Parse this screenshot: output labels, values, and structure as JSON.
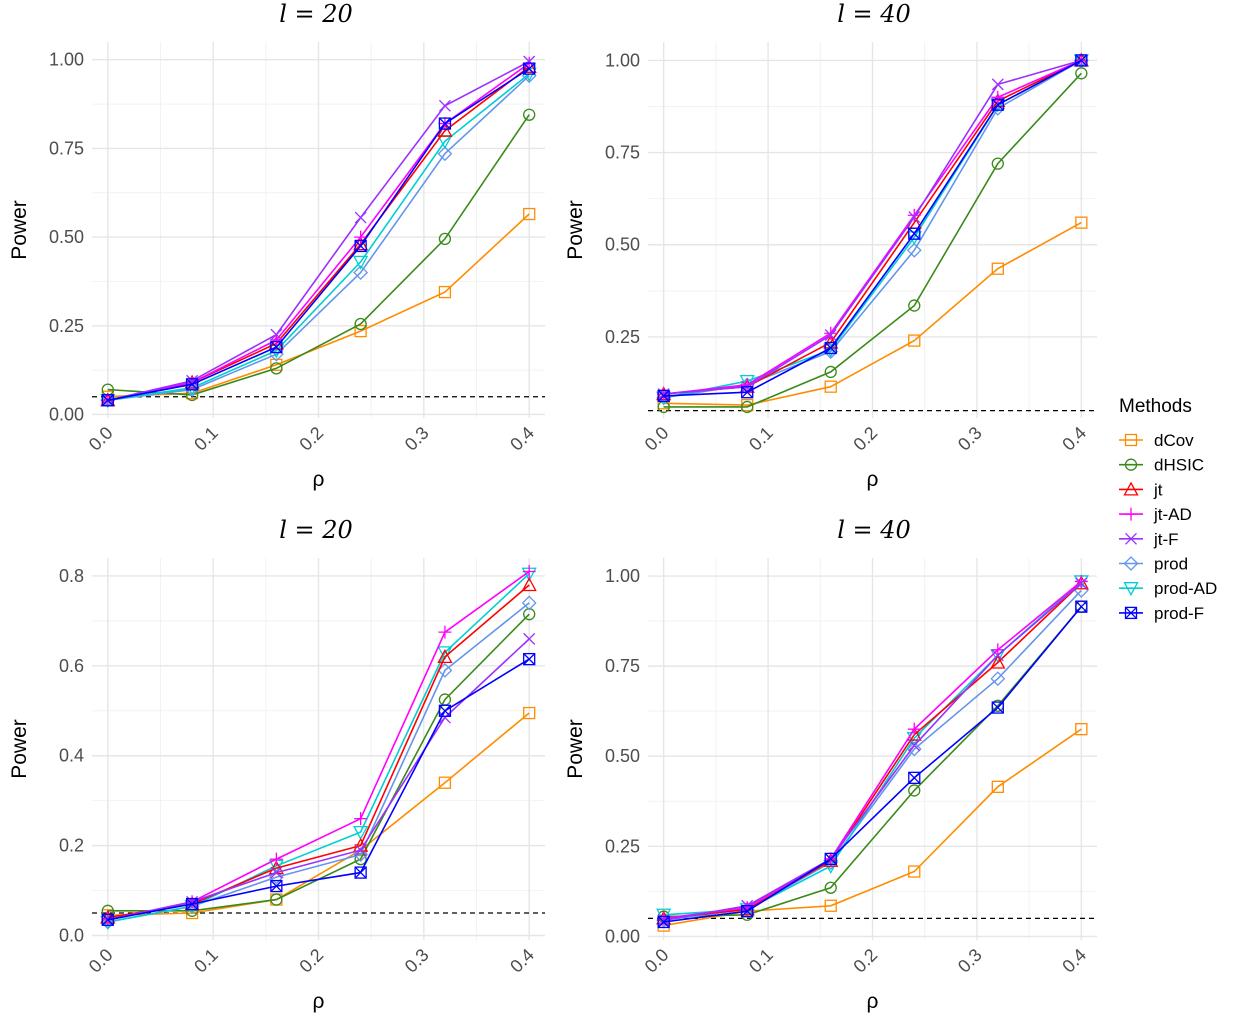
{
  "chart_data": {
    "type": "line",
    "legend": {
      "title": "Methods",
      "placement": "right",
      "entries": [
        {
          "name": "dCov",
          "color": "#ff8c00",
          "marker": "square"
        },
        {
          "name": "dHSIC",
          "color": "#3a8a1a",
          "marker": "circle"
        },
        {
          "name": "jt",
          "color": "#ff0000",
          "marker": "triangle-up"
        },
        {
          "name": "jt-AD",
          "color": "#ff00ff",
          "marker": "plus"
        },
        {
          "name": "jt-F",
          "color": "#9b30ff",
          "marker": "cross"
        },
        {
          "name": "prod",
          "color": "#6495ed",
          "marker": "diamond"
        },
        {
          "name": "prod-AD",
          "color": "#00ced1",
          "marker": "triangle-down"
        },
        {
          "name": "prod-F",
          "color": "#0000ff",
          "marker": "square-cross"
        }
      ]
    },
    "panels": [
      {
        "title": "l = 20",
        "xlabel": "ρ",
        "ylabel": "Power",
        "xlim": [
          -0.015,
          0.415
        ],
        "ylim": [
          -0.01,
          1.05
        ],
        "yticks": [
          0.0,
          0.25,
          0.5,
          0.75,
          1.0
        ],
        "ytick_labels": [
          "0.00",
          "0.25",
          "0.50",
          "0.75",
          "1.00"
        ],
        "xticks": [
          0.0,
          0.1,
          0.2,
          0.3,
          0.4
        ],
        "xtick_labels": [
          "0.0",
          "0.1",
          "0.2",
          "0.3",
          "0.4"
        ],
        "reference_line": 0.05,
        "grid": true,
        "x": [
          0.0,
          0.08,
          0.16,
          0.24,
          0.32,
          0.4
        ],
        "series": [
          {
            "name": "dCov",
            "values": [
              0.05,
              0.06,
              0.14,
              0.235,
              0.345,
              0.565
            ]
          },
          {
            "name": "dHSIC",
            "values": [
              0.07,
              0.055,
              0.13,
              0.255,
              0.495,
              0.845
            ]
          },
          {
            "name": "jt",
            "values": [
              0.04,
              0.09,
              0.2,
              0.48,
              0.8,
              0.98
            ]
          },
          {
            "name": "jt-AD",
            "values": [
              0.04,
              0.09,
              0.21,
              0.5,
              0.82,
              0.99
            ]
          },
          {
            "name": "jt-F",
            "values": [
              0.04,
              0.095,
              0.225,
              0.555,
              0.87,
              0.995
            ]
          },
          {
            "name": "prod",
            "values": [
              0.04,
              0.07,
              0.17,
              0.4,
              0.735,
              0.955
            ]
          },
          {
            "name": "prod-AD",
            "values": [
              0.04,
              0.075,
              0.18,
              0.43,
              0.77,
              0.96
            ]
          },
          {
            "name": "prod-F",
            "values": [
              0.04,
              0.085,
              0.19,
              0.475,
              0.82,
              0.975
            ]
          }
        ]
      },
      {
        "title": "l = 40",
        "xlabel": "ρ",
        "ylabel": "Power",
        "xlim": [
          -0.015,
          0.415
        ],
        "ylim": [
          0.03,
          1.05
        ],
        "yticks": [
          0.25,
          0.5,
          0.75,
          1.0
        ],
        "ytick_labels": [
          "0.25",
          "0.50",
          "0.75",
          "1.00"
        ],
        "xticks": [
          0.0,
          0.1,
          0.2,
          0.3,
          0.4
        ],
        "xtick_labels": [
          "0.0",
          "0.1",
          "0.2",
          "0.3",
          "0.4"
        ],
        "reference_line": 0.05,
        "grid": true,
        "x": [
          0.0,
          0.08,
          0.16,
          0.24,
          0.32,
          0.4
        ],
        "series": [
          {
            "name": "dCov",
            "values": [
              0.07,
              0.065,
              0.115,
              0.24,
              0.435,
              0.56
            ]
          },
          {
            "name": "dHSIC",
            "values": [
              0.06,
              0.06,
              0.155,
              0.335,
              0.72,
              0.965
            ]
          },
          {
            "name": "jt",
            "values": [
              0.095,
              0.115,
              0.235,
              0.56,
              0.89,
              1.0
            ]
          },
          {
            "name": "jt-AD",
            "values": [
              0.095,
              0.12,
              0.26,
              0.58,
              0.9,
              1.0
            ]
          },
          {
            "name": "jt-F",
            "values": [
              0.095,
              0.115,
              0.255,
              0.575,
              0.935,
              1.0
            ]
          },
          {
            "name": "prod",
            "values": [
              0.085,
              0.12,
              0.21,
              0.485,
              0.87,
              1.0
            ]
          },
          {
            "name": "prod-AD",
            "values": [
              0.085,
              0.13,
              0.215,
              0.52,
              0.88,
              1.0
            ]
          },
          {
            "name": "prod-F",
            "values": [
              0.09,
              0.1,
              0.22,
              0.53,
              0.88,
              1.0
            ]
          }
        ]
      },
      {
        "title": "l = 20",
        "xlabel": "ρ",
        "ylabel": "Power",
        "xlim": [
          -0.015,
          0.415
        ],
        "ylim": [
          -0.01,
          0.84
        ],
        "yticks": [
          0.0,
          0.2,
          0.4,
          0.6,
          0.8
        ],
        "ytick_labels": [
          "0.0",
          "0.2",
          "0.4",
          "0.6",
          "0.8"
        ],
        "xticks": [
          0.0,
          0.1,
          0.2,
          0.3,
          0.4
        ],
        "xtick_labels": [
          "0.0",
          "0.1",
          "0.2",
          "0.3",
          "0.4"
        ],
        "reference_line": 0.05,
        "grid": true,
        "x": [
          0.0,
          0.08,
          0.16,
          0.24,
          0.32,
          0.4
        ],
        "series": [
          {
            "name": "dCov",
            "values": [
              0.045,
              0.05,
              0.08,
              0.19,
              0.34,
              0.495
            ]
          },
          {
            "name": "dHSIC",
            "values": [
              0.055,
              0.055,
              0.08,
              0.17,
              0.525,
              0.715
            ]
          },
          {
            "name": "jt",
            "values": [
              0.04,
              0.07,
              0.15,
              0.2,
              0.62,
              0.78
            ]
          },
          {
            "name": "jt-AD",
            "values": [
              0.035,
              0.075,
              0.17,
              0.26,
              0.675,
              0.81
            ]
          },
          {
            "name": "jt-F",
            "values": [
              0.035,
              0.075,
              0.14,
              0.19,
              0.485,
              0.66
            ]
          },
          {
            "name": "prod",
            "values": [
              0.03,
              0.065,
              0.13,
              0.18,
              0.59,
              0.74
            ]
          },
          {
            "name": "prod-AD",
            "values": [
              0.03,
              0.065,
              0.155,
              0.23,
              0.63,
              0.805
            ]
          },
          {
            "name": "prod-F",
            "values": [
              0.035,
              0.07,
              0.11,
              0.14,
              0.5,
              0.615
            ]
          }
        ]
      },
      {
        "title": "l = 40",
        "xlabel": "ρ",
        "ylabel": "Power",
        "xlim": [
          -0.015,
          0.415
        ],
        "ylim": [
          -0.01,
          1.05
        ],
        "yticks": [
          0.0,
          0.25,
          0.5,
          0.75,
          1.0
        ],
        "ytick_labels": [
          "0.00",
          "0.25",
          "0.50",
          "0.75",
          "1.00"
        ],
        "xticks": [
          0.0,
          0.1,
          0.2,
          0.3,
          0.4
        ],
        "xtick_labels": [
          "0.0",
          "0.1",
          "0.2",
          "0.3",
          "0.4"
        ],
        "reference_line": 0.05,
        "grid": true,
        "x": [
          0.0,
          0.08,
          0.16,
          0.24,
          0.32,
          0.4
        ],
        "series": [
          {
            "name": "dCov",
            "values": [
              0.03,
              0.07,
              0.085,
              0.18,
              0.415,
              0.575
            ]
          },
          {
            "name": "dHSIC",
            "values": [
              0.055,
              0.06,
              0.135,
              0.405,
              0.64,
              0.915
            ]
          },
          {
            "name": "jt",
            "values": [
              0.05,
              0.075,
              0.21,
              0.56,
              0.76,
              0.98
            ]
          },
          {
            "name": "jt-AD",
            "values": [
              0.05,
              0.08,
              0.215,
              0.575,
              0.795,
              0.985
            ]
          },
          {
            "name": "jt-F",
            "values": [
              0.045,
              0.085,
              0.215,
              0.53,
              0.78,
              0.98
            ]
          },
          {
            "name": "prod",
            "values": [
              0.045,
              0.075,
              0.205,
              0.52,
              0.715,
              0.96
            ]
          },
          {
            "name": "prod-AD",
            "values": [
              0.06,
              0.075,
              0.195,
              0.55,
              0.78,
              0.985
            ]
          },
          {
            "name": "prod-F",
            "values": [
              0.04,
              0.07,
              0.215,
              0.44,
              0.635,
              0.915
            ]
          }
        ]
      }
    ]
  }
}
